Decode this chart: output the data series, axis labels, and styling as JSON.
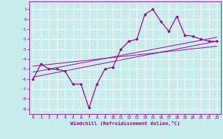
{
  "xlabel": "Windchill (Refroidissement éolien,°C)",
  "background_color": "#c8ecec",
  "grid_color": "#ffffff",
  "line_color": "#990099",
  "xlim": [
    -0.5,
    23.5
  ],
  "ylim": [
    -9.5,
    1.8
  ],
  "xticks": [
    0,
    1,
    2,
    3,
    4,
    5,
    6,
    7,
    8,
    9,
    10,
    11,
    12,
    13,
    14,
    15,
    16,
    17,
    18,
    19,
    20,
    21,
    22,
    23
  ],
  "yticks": [
    1,
    0,
    -1,
    -2,
    -3,
    -4,
    -5,
    -6,
    -7,
    -8,
    -9
  ],
  "main_x": [
    0,
    1,
    2,
    3,
    4,
    5,
    6,
    7,
    8,
    9,
    10,
    11,
    12,
    13,
    14,
    15,
    16,
    17,
    18,
    19,
    20,
    21,
    22,
    23
  ],
  "main_y": [
    -6.0,
    -4.5,
    -5.0,
    -5.0,
    -5.2,
    -6.5,
    -6.5,
    -8.9,
    -6.5,
    -5.0,
    -4.8,
    -3.0,
    -2.2,
    -2.0,
    0.5,
    1.0,
    -0.2,
    -1.2,
    0.3,
    -1.6,
    -1.7,
    -2.0,
    -2.2,
    -2.2
  ],
  "line1_x": [
    0,
    23
  ],
  "line1_y": [
    -5.8,
    -2.2
  ],
  "line2_x": [
    0,
    23
  ],
  "line2_y": [
    -5.3,
    -1.8
  ],
  "line3_x": [
    0,
    23
  ],
  "line3_y": [
    -4.7,
    -2.7
  ]
}
